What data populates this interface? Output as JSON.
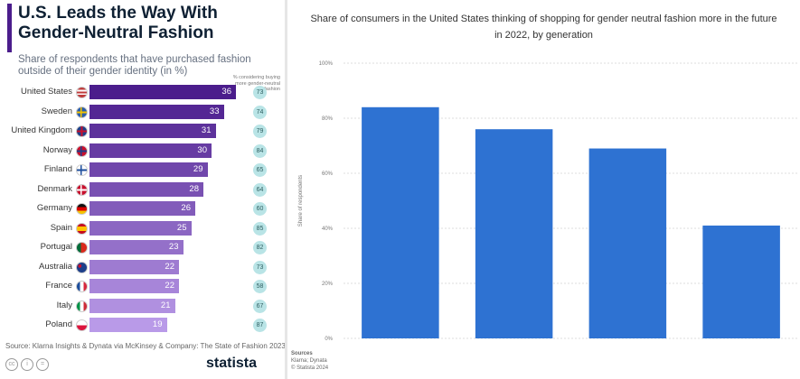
{
  "left_panel": {
    "title": "U.S. Leads the Way With Gender-Neutral Fashion",
    "subtitle": "Share of respondents that have purchased fashion outside of their gender identity (in %)",
    "legend_note": "% considering buying more gender-neutral fashion",
    "source": "Source: Klarna Insights & Dynata via McKinsey & Company: The State of Fashion 2023",
    "logo": "statista",
    "cc_icons": [
      "cc",
      "i",
      "="
    ],
    "colors": {
      "accent": "#4b1d8c",
      "bar_dark": "#4b1d8c",
      "bar_light": "#b99ae8",
      "circle": "#b9e4e6"
    }
  },
  "right_panel": {
    "source_head": "Sources",
    "source_lines": [
      "Klarna; Dynata",
      "© Statista 2024"
    ]
  },
  "chart_data": [
    {
      "type": "bar",
      "orientation": "horizontal",
      "title": "U.S. Leads the Way With Gender-Neutral Fashion",
      "categories": [
        "United States",
        "Sweden",
        "United Kingdom",
        "Norway",
        "Finland",
        "Denmark",
        "Germany",
        "Spain",
        "Portugal",
        "Australia",
        "France",
        "Italy",
        "Poland"
      ],
      "flags": [
        "us",
        "se",
        "gb",
        "no",
        "fi",
        "dk",
        "de",
        "es",
        "pt",
        "au",
        "fr",
        "it",
        "pl"
      ],
      "series": [
        {
          "name": "Share of respondents that have purchased fashion outside of their gender identity (in %)",
          "values": [
            36,
            33,
            31,
            30,
            29,
            28,
            26,
            25,
            23,
            22,
            22,
            21,
            19
          ]
        },
        {
          "name": "% considering buying more gender-neutral fashion",
          "values": [
            73,
            74,
            79,
            84,
            65,
            64,
            60,
            85,
            82,
            73,
            58,
            67,
            87
          ]
        }
      ],
      "xlim": [
        0,
        36
      ]
    },
    {
      "type": "bar",
      "title": "Share of consumers in the United States thinking of shopping for gender neutral fashion more in the future in 2022, by generation",
      "ylabel": "Share of respondents",
      "categories": [
        "",
        "",
        "",
        ""
      ],
      "values": [
        84,
        76,
        69,
        41
      ],
      "ylim": [
        0,
        100
      ],
      "yticks": [
        0,
        20,
        40,
        60,
        80,
        100
      ],
      "ytick_labels": [
        "0%",
        "20%",
        "40%",
        "60%",
        "80%",
        "100%"
      ],
      "grid": true,
      "bar_color": "#2e72d2"
    }
  ]
}
